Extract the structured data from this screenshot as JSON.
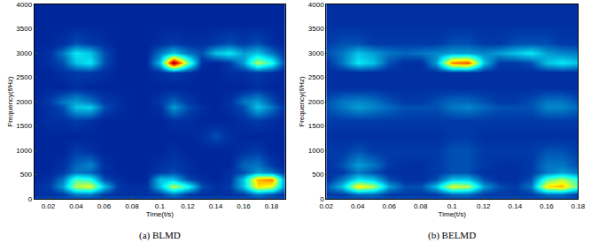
{
  "chart_data": [
    {
      "type": "heatmap",
      "title": "(a) BLMD",
      "x_label": "Time(t/s)",
      "y_label": "Frequency(f/Hz)",
      "x": [
        0.01,
        0.02,
        0.03,
        0.04,
        0.05,
        0.06,
        0.07,
        0.08,
        0.09,
        0.1,
        0.11,
        0.12,
        0.13,
        0.14,
        0.15,
        0.16,
        0.17,
        0.18,
        0.19
      ],
      "y": [
        0,
        100,
        250,
        400,
        550,
        700,
        1000,
        1300,
        1600,
        1900,
        2000,
        2300,
        2600,
        2800,
        3000,
        3200,
        3600,
        4000
      ],
      "z": [
        [
          0.15,
          0.15,
          0.15,
          0.15,
          0.15,
          0.15,
          0.15,
          0.15,
          0.15,
          0.15,
          0.15,
          0.15,
          0.15,
          0.15,
          0.15,
          0.15,
          0.15,
          0.15,
          0.15
        ],
        [
          0.1,
          0.1,
          0.12,
          0.2,
          0.2,
          0.12,
          0.1,
          0.1,
          0.1,
          0.12,
          0.2,
          0.12,
          0.1,
          0.1,
          0.1,
          0.12,
          0.2,
          0.15,
          0.1
        ],
        [
          0.1,
          0.12,
          0.25,
          0.55,
          0.6,
          0.3,
          0.12,
          0.1,
          0.1,
          0.3,
          0.55,
          0.4,
          0.15,
          0.1,
          0.12,
          0.3,
          0.65,
          0.6,
          0.2
        ],
        [
          0.08,
          0.1,
          0.2,
          0.45,
          0.4,
          0.15,
          0.1,
          0.08,
          0.08,
          0.3,
          0.3,
          0.15,
          0.1,
          0.08,
          0.1,
          0.3,
          0.7,
          0.75,
          0.2
        ],
        [
          0.08,
          0.08,
          0.12,
          0.2,
          0.18,
          0.1,
          0.08,
          0.08,
          0.08,
          0.12,
          0.15,
          0.1,
          0.08,
          0.08,
          0.1,
          0.15,
          0.25,
          0.2,
          0.1
        ],
        [
          0.08,
          0.08,
          0.1,
          0.18,
          0.22,
          0.1,
          0.08,
          0.08,
          0.08,
          0.1,
          0.12,
          0.1,
          0.08,
          0.08,
          0.08,
          0.18,
          0.2,
          0.12,
          0.08
        ],
        [
          0.08,
          0.08,
          0.08,
          0.12,
          0.1,
          0.08,
          0.08,
          0.08,
          0.08,
          0.08,
          0.1,
          0.08,
          0.08,
          0.08,
          0.08,
          0.1,
          0.12,
          0.08,
          0.08
        ],
        [
          0.08,
          0.08,
          0.08,
          0.08,
          0.08,
          0.08,
          0.08,
          0.08,
          0.08,
          0.08,
          0.08,
          0.08,
          0.1,
          0.15,
          0.1,
          0.08,
          0.08,
          0.08,
          0.08
        ],
        [
          0.08,
          0.1,
          0.1,
          0.12,
          0.1,
          0.08,
          0.08,
          0.08,
          0.08,
          0.08,
          0.1,
          0.1,
          0.08,
          0.08,
          0.08,
          0.1,
          0.12,
          0.1,
          0.08
        ],
        [
          0.08,
          0.1,
          0.15,
          0.3,
          0.32,
          0.15,
          0.1,
          0.08,
          0.08,
          0.1,
          0.25,
          0.15,
          0.1,
          0.08,
          0.1,
          0.15,
          0.3,
          0.2,
          0.1
        ],
        [
          0.08,
          0.12,
          0.2,
          0.25,
          0.2,
          0.12,
          0.1,
          0.08,
          0.08,
          0.12,
          0.18,
          0.12,
          0.08,
          0.08,
          0.1,
          0.2,
          0.25,
          0.15,
          0.08
        ],
        [
          0.08,
          0.08,
          0.08,
          0.1,
          0.08,
          0.08,
          0.08,
          0.08,
          0.08,
          0.08,
          0.08,
          0.08,
          0.08,
          0.08,
          0.08,
          0.08,
          0.1,
          0.08,
          0.08
        ],
        [
          0.08,
          0.08,
          0.1,
          0.12,
          0.12,
          0.1,
          0.08,
          0.08,
          0.08,
          0.1,
          0.12,
          0.1,
          0.08,
          0.08,
          0.1,
          0.1,
          0.12,
          0.1,
          0.08
        ],
        [
          0.08,
          0.1,
          0.15,
          0.3,
          0.35,
          0.15,
          0.08,
          0.08,
          0.08,
          0.3,
          1.0,
          0.5,
          0.1,
          0.08,
          0.12,
          0.25,
          0.55,
          0.4,
          0.12
        ],
        [
          0.08,
          0.1,
          0.2,
          0.35,
          0.3,
          0.15,
          0.08,
          0.08,
          0.08,
          0.2,
          0.3,
          0.2,
          0.15,
          0.3,
          0.35,
          0.25,
          0.3,
          0.2,
          0.1
        ],
        [
          0.08,
          0.08,
          0.1,
          0.15,
          0.12,
          0.1,
          0.08,
          0.08,
          0.08,
          0.1,
          0.12,
          0.1,
          0.1,
          0.12,
          0.15,
          0.12,
          0.15,
          0.1,
          0.08
        ],
        [
          0.08,
          0.08,
          0.08,
          0.08,
          0.08,
          0.08,
          0.08,
          0.08,
          0.08,
          0.08,
          0.08,
          0.08,
          0.08,
          0.08,
          0.08,
          0.08,
          0.08,
          0.08,
          0.08
        ],
        [
          0.08,
          0.08,
          0.08,
          0.08,
          0.08,
          0.08,
          0.08,
          0.08,
          0.08,
          0.08,
          0.08,
          0.08,
          0.08,
          0.08,
          0.08,
          0.08,
          0.08,
          0.08,
          0.08
        ]
      ],
      "zlim": [
        0,
        1
      ],
      "xlim": [
        0.01,
        0.19
      ],
      "xticks": [
        0.02,
        0.04,
        0.06,
        0.08,
        0.1,
        0.12,
        0.14,
        0.16,
        0.18
      ],
      "ylim": [
        0,
        4000
      ],
      "yticks": [
        0,
        500,
        1000,
        1500,
        2000,
        2500,
        3000,
        3500,
        4000
      ]
    },
    {
      "type": "heatmap",
      "title": "(b) BELMD",
      "x_label": "Time(t/s)",
      "y_label": "Frequency(f/Hz)",
      "x": [
        0.02,
        0.03,
        0.04,
        0.05,
        0.06,
        0.07,
        0.08,
        0.09,
        0.1,
        0.11,
        0.12,
        0.13,
        0.14,
        0.15,
        0.16,
        0.17,
        0.18
      ],
      "y": [
        0,
        100,
        250,
        400,
        550,
        700,
        1000,
        1300,
        1600,
        1900,
        2000,
        2300,
        2600,
        2800,
        3000,
        3200,
        3600,
        4000
      ],
      "z": [
        [
          0.15,
          0.15,
          0.15,
          0.15,
          0.15,
          0.15,
          0.15,
          0.15,
          0.15,
          0.15,
          0.15,
          0.15,
          0.15,
          0.15,
          0.15,
          0.15,
          0.15
        ],
        [
          0.12,
          0.12,
          0.18,
          0.18,
          0.12,
          0.12,
          0.12,
          0.12,
          0.18,
          0.18,
          0.12,
          0.12,
          0.12,
          0.12,
          0.18,
          0.18,
          0.12
        ],
        [
          0.15,
          0.3,
          0.65,
          0.55,
          0.25,
          0.15,
          0.15,
          0.3,
          0.6,
          0.55,
          0.25,
          0.15,
          0.12,
          0.2,
          0.65,
          0.7,
          0.45
        ],
        [
          0.1,
          0.2,
          0.35,
          0.3,
          0.15,
          0.1,
          0.1,
          0.15,
          0.3,
          0.3,
          0.15,
          0.1,
          0.1,
          0.15,
          0.45,
          0.55,
          0.4
        ],
        [
          0.1,
          0.12,
          0.2,
          0.15,
          0.1,
          0.1,
          0.1,
          0.12,
          0.15,
          0.15,
          0.1,
          0.1,
          0.1,
          0.12,
          0.2,
          0.25,
          0.2
        ],
        [
          0.1,
          0.15,
          0.25,
          0.2,
          0.12,
          0.1,
          0.1,
          0.12,
          0.15,
          0.15,
          0.12,
          0.1,
          0.1,
          0.12,
          0.2,
          0.2,
          0.15
        ],
        [
          0.12,
          0.12,
          0.15,
          0.12,
          0.12,
          0.12,
          0.12,
          0.12,
          0.15,
          0.15,
          0.12,
          0.12,
          0.12,
          0.12,
          0.15,
          0.15,
          0.12
        ],
        [
          0.1,
          0.1,
          0.1,
          0.1,
          0.1,
          0.1,
          0.1,
          0.1,
          0.12,
          0.12,
          0.1,
          0.1,
          0.1,
          0.1,
          0.1,
          0.1,
          0.1
        ],
        [
          0.12,
          0.12,
          0.12,
          0.12,
          0.12,
          0.12,
          0.12,
          0.12,
          0.12,
          0.12,
          0.12,
          0.12,
          0.12,
          0.12,
          0.12,
          0.12,
          0.12
        ],
        [
          0.15,
          0.2,
          0.25,
          0.22,
          0.18,
          0.15,
          0.15,
          0.15,
          0.2,
          0.22,
          0.18,
          0.15,
          0.15,
          0.15,
          0.22,
          0.22,
          0.18
        ],
        [
          0.15,
          0.2,
          0.22,
          0.2,
          0.15,
          0.12,
          0.12,
          0.15,
          0.18,
          0.18,
          0.15,
          0.12,
          0.12,
          0.15,
          0.2,
          0.2,
          0.15
        ],
        [
          0.1,
          0.1,
          0.1,
          0.1,
          0.1,
          0.1,
          0.1,
          0.1,
          0.1,
          0.1,
          0.1,
          0.1,
          0.1,
          0.1,
          0.1,
          0.1,
          0.1
        ],
        [
          0.1,
          0.1,
          0.1,
          0.1,
          0.1,
          0.1,
          0.1,
          0.1,
          0.1,
          0.1,
          0.1,
          0.1,
          0.1,
          0.1,
          0.1,
          0.1,
          0.1
        ],
        [
          0.1,
          0.2,
          0.35,
          0.3,
          0.15,
          0.1,
          0.1,
          0.25,
          0.75,
          0.8,
          0.3,
          0.12,
          0.12,
          0.15,
          0.3,
          0.35,
          0.3
        ],
        [
          0.15,
          0.2,
          0.3,
          0.25,
          0.2,
          0.18,
          0.2,
          0.22,
          0.25,
          0.25,
          0.22,
          0.25,
          0.3,
          0.35,
          0.25,
          0.22,
          0.2
        ],
        [
          0.12,
          0.15,
          0.15,
          0.12,
          0.12,
          0.12,
          0.12,
          0.12,
          0.15,
          0.15,
          0.12,
          0.12,
          0.15,
          0.15,
          0.15,
          0.12,
          0.12
        ],
        [
          0.1,
          0.1,
          0.1,
          0.1,
          0.1,
          0.1,
          0.1,
          0.1,
          0.1,
          0.1,
          0.1,
          0.1,
          0.1,
          0.1,
          0.1,
          0.1,
          0.1
        ],
        [
          0.1,
          0.1,
          0.1,
          0.1,
          0.1,
          0.1,
          0.1,
          0.1,
          0.1,
          0.1,
          0.1,
          0.1,
          0.1,
          0.1,
          0.1,
          0.1,
          0.1
        ]
      ],
      "zlim": [
        0,
        1
      ],
      "xlim": [
        0.02,
        0.18
      ],
      "xticks": [
        0.02,
        0.04,
        0.06,
        0.08,
        0.1,
        0.12,
        0.14,
        0.16,
        0.18
      ],
      "ylim": [
        0,
        4000
      ],
      "yticks": [
        0,
        500,
        1000,
        1500,
        2000,
        2500,
        3000,
        3500,
        4000
      ]
    }
  ]
}
